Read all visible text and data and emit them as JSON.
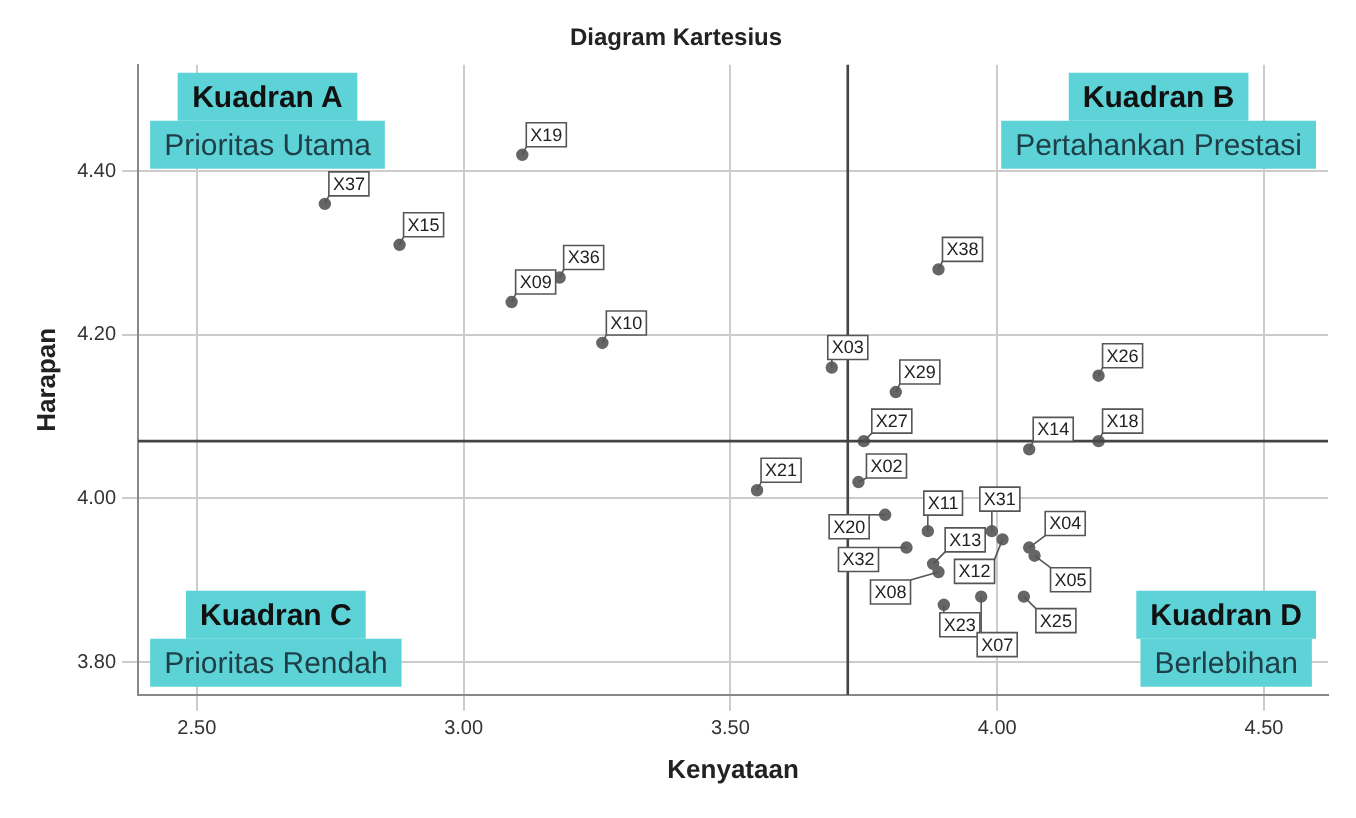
{
  "chart_data": {
    "type": "scatter",
    "title": "Diagram Kartesius",
    "xlabel": "Kenyataan",
    "ylabel": "Harapan",
    "x": [
      3.11,
      2.74,
      2.88,
      3.18,
      3.09,
      3.26,
      3.89,
      3.69,
      3.81,
      4.19,
      3.75,
      4.06,
      4.19,
      3.55,
      3.74,
      3.79,
      3.87,
      3.99,
      4.01,
      4.06,
      4.07,
      3.83,
      3.88,
      3.89,
      3.9,
      3.97,
      4.05
    ],
    "series": [
      {
        "color": "#666666",
        "values": [
          4.42,
          4.36,
          4.31,
          4.27,
          4.24,
          4.19,
          4.28,
          4.16,
          4.13,
          4.15,
          4.07,
          4.06,
          4.07,
          4.01,
          4.02,
          3.98,
          3.96,
          3.96,
          3.95,
          3.94,
          3.93,
          3.94,
          3.92,
          3.91,
          3.87,
          3.88,
          3.88
        ]
      }
    ],
    "xlim": [
      2.39,
      4.62
    ],
    "ylim": [
      3.76,
      4.53
    ],
    "xticks": [
      {
        "value": 2.5,
        "label": "2.50"
      },
      {
        "value": 3.0,
        "label": "3.00"
      },
      {
        "value": 3.5,
        "label": "3.50"
      },
      {
        "value": 4.0,
        "label": "4.00"
      },
      {
        "value": 4.5,
        "label": "4.50"
      }
    ],
    "yticks": [
      {
        "value": 3.8,
        "label": "3.80"
      },
      {
        "value": 4.0,
        "label": "4.00"
      },
      {
        "value": 4.2,
        "label": "4.20"
      },
      {
        "value": 4.4,
        "label": "4.40"
      }
    ],
    "grid": true,
    "legend": false,
    "marker": "circle",
    "ref_lines": [
      {
        "axis": "x",
        "value": 3.72,
        "color": "#444444"
      },
      {
        "axis": "y",
        "value": 4.07,
        "color": "#444444"
      }
    ],
    "annotations": [
      {
        "text": "X19",
        "x": 3.11,
        "y": 4.42
      },
      {
        "text": "X37",
        "x": 2.74,
        "y": 4.36
      },
      {
        "text": "X15",
        "x": 2.88,
        "y": 4.31
      },
      {
        "text": "X36",
        "x": 3.18,
        "y": 4.27
      },
      {
        "text": "X09",
        "x": 3.09,
        "y": 4.24
      },
      {
        "text": "X10",
        "x": 3.26,
        "y": 4.19
      },
      {
        "text": "X38",
        "x": 3.89,
        "y": 4.28
      },
      {
        "text": "X03",
        "x": 3.69,
        "y": 4.16
      },
      {
        "text": "X29",
        "x": 3.81,
        "y": 4.13
      },
      {
        "text": "X26",
        "x": 4.19,
        "y": 4.15
      },
      {
        "text": "X27",
        "x": 3.75,
        "y": 4.07
      },
      {
        "text": "X14",
        "x": 4.06,
        "y": 4.06
      },
      {
        "text": "X18",
        "x": 4.19,
        "y": 4.07
      },
      {
        "text": "X21",
        "x": 3.55,
        "y": 4.01
      },
      {
        "text": "X02",
        "x": 3.74,
        "y": 4.02
      },
      {
        "text": "X20",
        "x": 3.79,
        "y": 3.98
      },
      {
        "text": "X11",
        "x": 3.87,
        "y": 3.96
      },
      {
        "text": "X31",
        "x": 3.99,
        "y": 3.96
      },
      {
        "text": "X12",
        "x": 4.01,
        "y": 3.95
      },
      {
        "text": "X04",
        "x": 4.06,
        "y": 3.94
      },
      {
        "text": "X05",
        "x": 4.07,
        "y": 3.93
      },
      {
        "text": "X32",
        "x": 3.83,
        "y": 3.94
      },
      {
        "text": "X13",
        "x": 3.88,
        "y": 3.92
      },
      {
        "text": "X08",
        "x": 3.89,
        "y": 3.91
      },
      {
        "text": "X23",
        "x": 3.9,
        "y": 3.87
      },
      {
        "text": "X07",
        "x": 3.97,
        "y": 3.88
      },
      {
        "text": "X25",
        "x": 4.05,
        "y": 3.88
      },
      "Kuadran A",
      "Prioritas Utama",
      "Kuadran B",
      "Pertahankan Prestasi",
      "Kuadran C",
      "Prioritas Rendah",
      "Kuadran D",
      "Berlebihan"
    ]
  }
}
